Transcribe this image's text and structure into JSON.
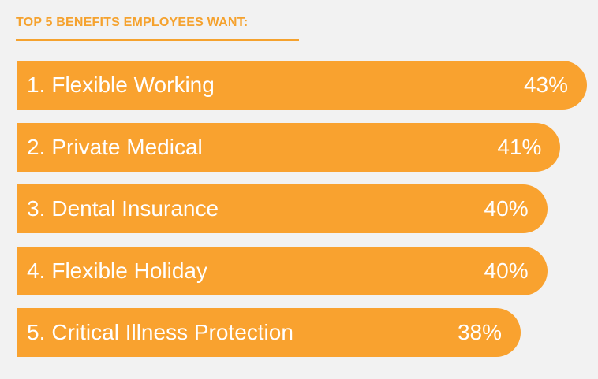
{
  "chart_data": {
    "type": "bar",
    "orientation": "horizontal",
    "title": "TOP 5 BENEFITS EMPLOYEES WANT:",
    "categories": [
      "Flexible Working",
      "Private Medical",
      "Dental Insurance",
      "Flexible Holiday",
      "Critical Illness Protection"
    ],
    "ranks": [
      "1.",
      "2.",
      "3.",
      "4.",
      "5."
    ],
    "values": [
      43,
      41,
      40,
      40,
      38
    ],
    "value_labels": [
      "43%",
      "41%",
      "40%",
      "40%",
      "38%"
    ],
    "grid": false,
    "legend": "none"
  },
  "colors": {
    "bar": "#f9a22f",
    "background": "#f2f2f2",
    "title": "#f5a22e"
  }
}
